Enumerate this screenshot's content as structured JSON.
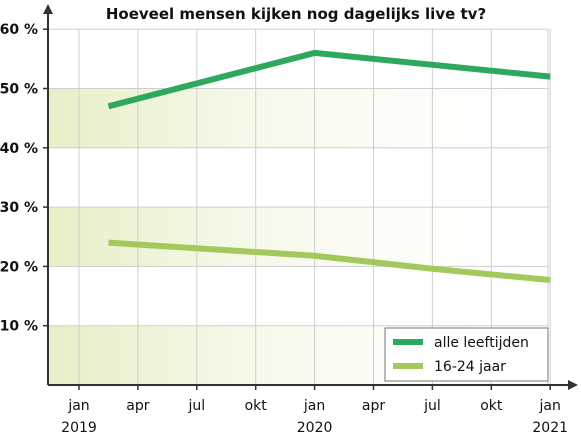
{
  "chart_data": {
    "type": "line",
    "title": "Hoeveel mensen kijken nog dagelijks live tv?",
    "x_ticks": [
      "jan",
      "apr",
      "jul",
      "okt",
      "jan",
      "apr",
      "jul",
      "okt",
      "jan"
    ],
    "x_years": [
      {
        "index": 0,
        "label": "2019"
      },
      {
        "index": 4,
        "label": "2020"
      },
      {
        "index": 8,
        "label": "2021"
      }
    ],
    "y_ticks": [
      "10 %",
      "20 %",
      "30 %",
      "40 %",
      "50 %",
      "60 %"
    ],
    "ylim": [
      0,
      60
    ],
    "grid": true,
    "legend_position": "bottom-right",
    "series": [
      {
        "name": "alle leeftijden",
        "color": "#2fa85f",
        "points": [
          {
            "x": 0.5,
            "y": 47
          },
          {
            "x": 4,
            "y": 56
          },
          {
            "x": 8,
            "y": 52
          }
        ]
      },
      {
        "name": "16-24 jaar",
        "color": "#a3c95c",
        "points": [
          {
            "x": 0.5,
            "y": 24
          },
          {
            "x": 4,
            "y": 21.8
          },
          {
            "x": 6,
            "y": 19.6
          },
          {
            "x": 8,
            "y": 17.7
          }
        ]
      }
    ],
    "band_color": "#e8f0cc"
  }
}
